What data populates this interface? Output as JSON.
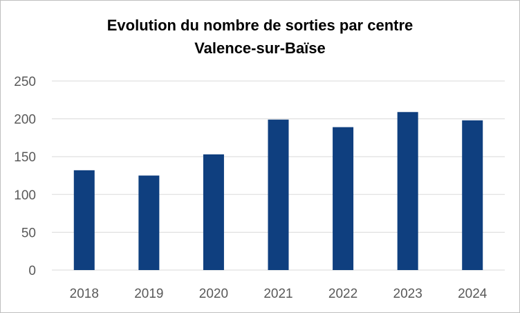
{
  "chart_data": {
    "type": "bar",
    "title_lines": [
      "Evolution du nombre de sorties par centre",
      "Valence-sur-Baïse"
    ],
    "categories": [
      "2018",
      "2019",
      "2020",
      "2021",
      "2022",
      "2023",
      "2024"
    ],
    "values": [
      132,
      125,
      153,
      199,
      189,
      209,
      198
    ],
    "ylim": [
      0,
      250
    ],
    "yticks": [
      "0",
      "50",
      "100",
      "150",
      "200",
      "250"
    ],
    "ytick_values": [
      0,
      50,
      100,
      150,
      200,
      250
    ],
    "grid": true,
    "legend": false,
    "colors": {
      "bar": "#0f3f7f",
      "grid": "#d9d9d9",
      "axis": "#d9d9d9"
    }
  }
}
